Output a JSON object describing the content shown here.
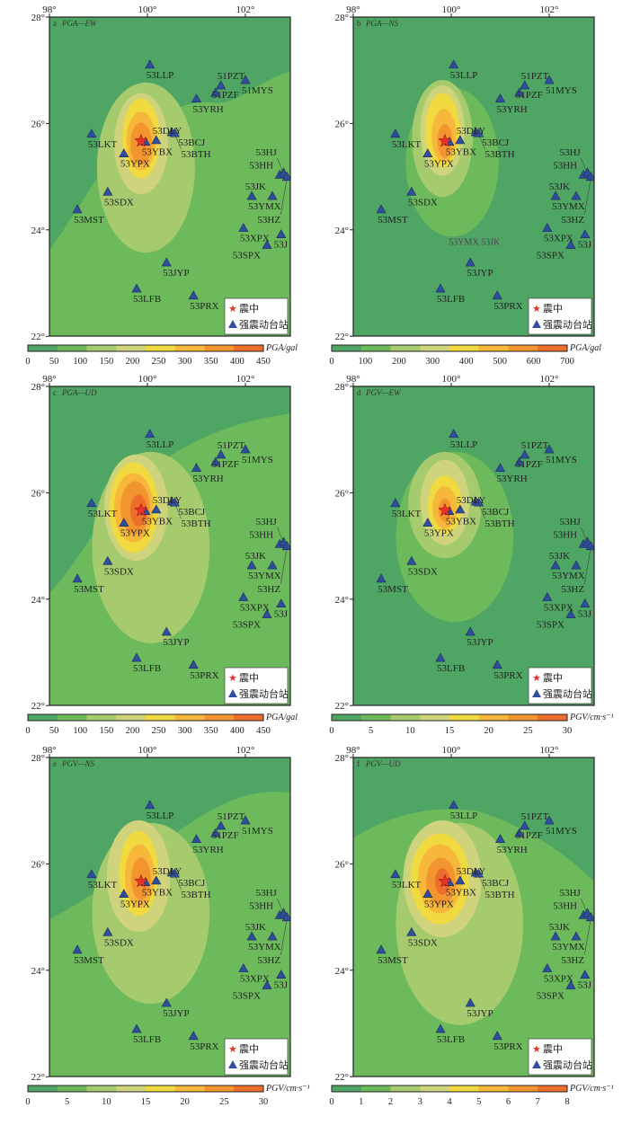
{
  "legend": {
    "epicenter": "震中",
    "station": "强震动台站"
  },
  "axes": {
    "lon_labels": [
      "98°",
      "100°",
      "102°"
    ],
    "lon_values": [
      98,
      100,
      102
    ],
    "lat_labels": [
      "28°",
      "26°",
      "24°",
      "22°"
    ],
    "lat_values": [
      28,
      26,
      24,
      22
    ]
  },
  "colors": {
    "levels": [
      "#4fa563",
      "#6cba5b",
      "#a6cb6e",
      "#cfd37c",
      "#f1da3f",
      "#f6b73a",
      "#f3952f",
      "#ed6d2b"
    ],
    "star": "#e8312b",
    "triangle": "#2f4f9e"
  },
  "epicenter": {
    "lon": 99.87,
    "lat": 25.67
  },
  "stations": [
    {
      "name": "53LLP",
      "lon": 100.05,
      "lat": 27.09
    },
    {
      "name": "53LKT",
      "lon": 98.86,
      "lat": 25.79
    },
    {
      "name": "53YPX",
      "lon": 99.52,
      "lat": 25.42
    },
    {
      "name": "53YBX",
      "lon": 99.96,
      "lat": 25.64
    },
    {
      "name": "53DLY",
      "lon": 100.18,
      "lat": 25.67
    },
    {
      "name": "53BCJ",
      "lon": 100.5,
      "lat": 25.82
    },
    {
      "name": "53BTH",
      "lon": 100.56,
      "lat": 25.8
    },
    {
      "name": "53YRH",
      "lon": 101.0,
      "lat": 26.45
    },
    {
      "name": "51PZF",
      "lon": 101.39,
      "lat": 26.56
    },
    {
      "name": "51PZT",
      "lon": 101.5,
      "lat": 26.7
    },
    {
      "name": "51MYS",
      "lon": 102.0,
      "lat": 26.8
    },
    {
      "name": "53SDX",
      "lon": 99.19,
      "lat": 24.7
    },
    {
      "name": "53MST",
      "lon": 98.57,
      "lat": 24.37
    },
    {
      "name": "53YMX",
      "lon": 102.13,
      "lat": 24.62
    },
    {
      "name": "53JK",
      "lon": 102.55,
      "lat": 24.62
    },
    {
      "name": "53XPX",
      "lon": 101.96,
      "lat": 24.02
    },
    {
      "name": "53SPX",
      "lon": 102.44,
      "lat": 23.7
    },
    {
      "name": "53J",
      "lon": 102.73,
      "lat": 23.9
    },
    {
      "name": "53HH",
      "lon": 102.7,
      "lat": 25.02
    },
    {
      "name": "53HJ",
      "lon": 102.78,
      "lat": 25.06
    },
    {
      "name": "53HZ",
      "lon": 102.85,
      "lat": 24.98
    },
    {
      "name": "53JYP",
      "lon": 100.39,
      "lat": 23.37
    },
    {
      "name": "53LFB",
      "lon": 99.78,
      "lat": 22.88
    },
    {
      "name": "53PRX",
      "lon": 100.94,
      "lat": 22.75
    }
  ],
  "panels": [
    {
      "letter": "a",
      "title": "PGA—EW",
      "unit": "PGA/gal",
      "ticks": [
        "0",
        "50",
        "100",
        "150",
        "200",
        "250",
        "300",
        "350",
        "400",
        "450"
      ],
      "range": [
        0,
        450
      ]
    },
    {
      "letter": "b",
      "title": "PGA—NS",
      "unit": "PGA/gal",
      "ticks": [
        "0",
        "100",
        "200",
        "300",
        "400",
        "500",
        "600",
        "700"
      ],
      "range": [
        0,
        700
      ],
      "extra_label": "53YMX 53JK"
    },
    {
      "letter": "c",
      "title": "PGA—UD",
      "unit": "PGA/gal",
      "ticks": [
        "0",
        "50",
        "100",
        "150",
        "200",
        "250",
        "300",
        "350",
        "400",
        "450"
      ],
      "range": [
        0,
        450
      ]
    },
    {
      "letter": "d",
      "title": "PGV—EW",
      "unit": "PGV/cm·s⁻¹",
      "ticks": [
        "0",
        "5",
        "10",
        "15",
        "20",
        "25",
        "30"
      ],
      "range": [
        0,
        30
      ]
    },
    {
      "letter": "e",
      "title": "PGV—NS",
      "unit": "PGV/cm·s⁻¹",
      "ticks": [
        "0",
        "5",
        "10",
        "15",
        "20",
        "25",
        "30"
      ],
      "range": [
        0,
        30
      ]
    },
    {
      "letter": "f",
      "title": "PGV—UD",
      "unit": "PGV/cm·s⁻¹",
      "ticks": [
        "0",
        "1",
        "2",
        "3",
        "4",
        "5",
        "6",
        "7",
        "8"
      ],
      "range": [
        0,
        8
      ]
    }
  ]
}
